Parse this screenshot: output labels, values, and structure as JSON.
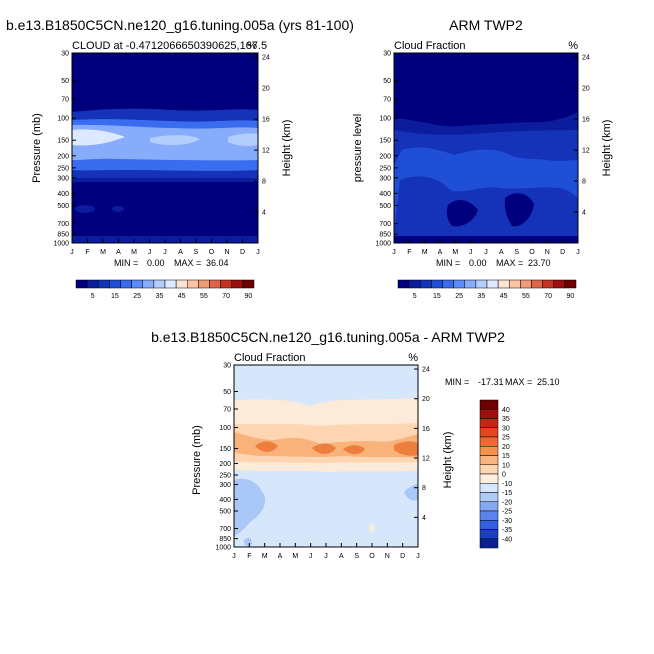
{
  "chart_data": [
    {
      "type": "heatmap",
      "title": "b.e13.B1850C5CN.ne120_g16.tuning.005a (yrs 81-100)",
      "subtitle_left": "CLOUD at -0.4712066650390625,167.5",
      "subtitle_right": "%",
      "ylabel": "Pressure (mb)",
      "ylabel_right": "Height (km)",
      "months": [
        "J",
        "F",
        "M",
        "A",
        "M",
        "J",
        "J",
        "A",
        "S",
        "O",
        "N",
        "D",
        "J"
      ],
      "pressure_ticks": [
        "30",
        "50",
        "70",
        "100",
        "150",
        "200",
        "250",
        "300",
        "400",
        "500",
        "700",
        "850",
        "1000"
      ],
      "height_ticks": [
        "24",
        "20",
        "16",
        "12",
        "8",
        "4"
      ],
      "min_label": "MIN =",
      "min": "0.00",
      "max_label": "MAX =",
      "max": "36.04",
      "colorbar_labels": [
        "5",
        "15",
        "25",
        "35",
        "45",
        "55",
        "70",
        "90"
      ]
    },
    {
      "type": "heatmap",
      "title": "ARM TWP2",
      "subtitle_left": "Cloud Fraction",
      "subtitle_right": "%",
      "ylabel": "pressure level",
      "ylabel_right": "Height (km)",
      "months": [
        "J",
        "F",
        "M",
        "A",
        "M",
        "J",
        "J",
        "A",
        "S",
        "O",
        "N",
        "D",
        "J"
      ],
      "pressure_ticks": [
        "30",
        "50",
        "70",
        "100",
        "150",
        "200",
        "250",
        "300",
        "400",
        "500",
        "700",
        "850",
        "1000"
      ],
      "height_ticks": [
        "24",
        "20",
        "16",
        "12",
        "8",
        "4"
      ],
      "min_label": "MIN =",
      "min": "0.00",
      "max_label": "MAX =",
      "max": "23.70",
      "colorbar_labels": [
        "5",
        "15",
        "25",
        "35",
        "45",
        "55",
        "70",
        "90"
      ]
    },
    {
      "type": "heatmap",
      "title": "b.e13.B1850C5CN.ne120_g16.tuning.005a - ARM TWP2",
      "subtitle_left": "Cloud Fraction",
      "subtitle_right": "%",
      "ylabel": "Pressure (mb)",
      "ylabel_right": "Height (km)",
      "months": [
        "J",
        "F",
        "M",
        "A",
        "M",
        "J",
        "J",
        "A",
        "S",
        "O",
        "N",
        "D",
        "J"
      ],
      "pressure_ticks": [
        "30",
        "50",
        "70",
        "100",
        "150",
        "200",
        "250",
        "300",
        "400",
        "500",
        "700",
        "850",
        "1000"
      ],
      "height_ticks": [
        "24",
        "20",
        "16",
        "12",
        "8",
        "4"
      ],
      "min_label": "MIN =",
      "min": "-17.31",
      "max_label": "MAX =",
      "max": "25.10",
      "colorbar_labels": [
        "40",
        "35",
        "30",
        "25",
        "20",
        "15",
        "10",
        "0",
        "-10",
        "-15",
        "-20",
        "-25",
        "-30",
        "-35",
        "-40"
      ]
    }
  ],
  "colors": {
    "abs_scale": [
      "#00007f",
      "#0b1c9c",
      "#1533b8",
      "#1f4fd6",
      "#3a6cf0",
      "#5c8cf7",
      "#86acfb",
      "#b3cdfd",
      "#dde9ff",
      "#fde4d2",
      "#fbc4a4",
      "#f39a76",
      "#e0644a",
      "#c43322",
      "#9a1010",
      "#6e0000"
    ],
    "diff_scale": [
      "#6e0000",
      "#9e0e0e",
      "#c7241a",
      "#e4461e",
      "#ef6a31",
      "#f5904e",
      "#fab47d",
      "#fdd5b2",
      "#ffeedd",
      "#d6e6fb",
      "#aecaf6",
      "#84a8f1",
      "#5a84ec",
      "#3460e0",
      "#1a3fc6",
      "#0a228f"
    ],
    "low": "#00007f",
    "mid_abs": "#3a6cf0",
    "diff_pale_blue": "#d6e6fb",
    "diff_pale_orange": "#fdebd9",
    "diff_orange": "#f9b27a",
    "diff_dark_orange": "#ee7e3e",
    "diff_blue": "#a9c7f7"
  }
}
